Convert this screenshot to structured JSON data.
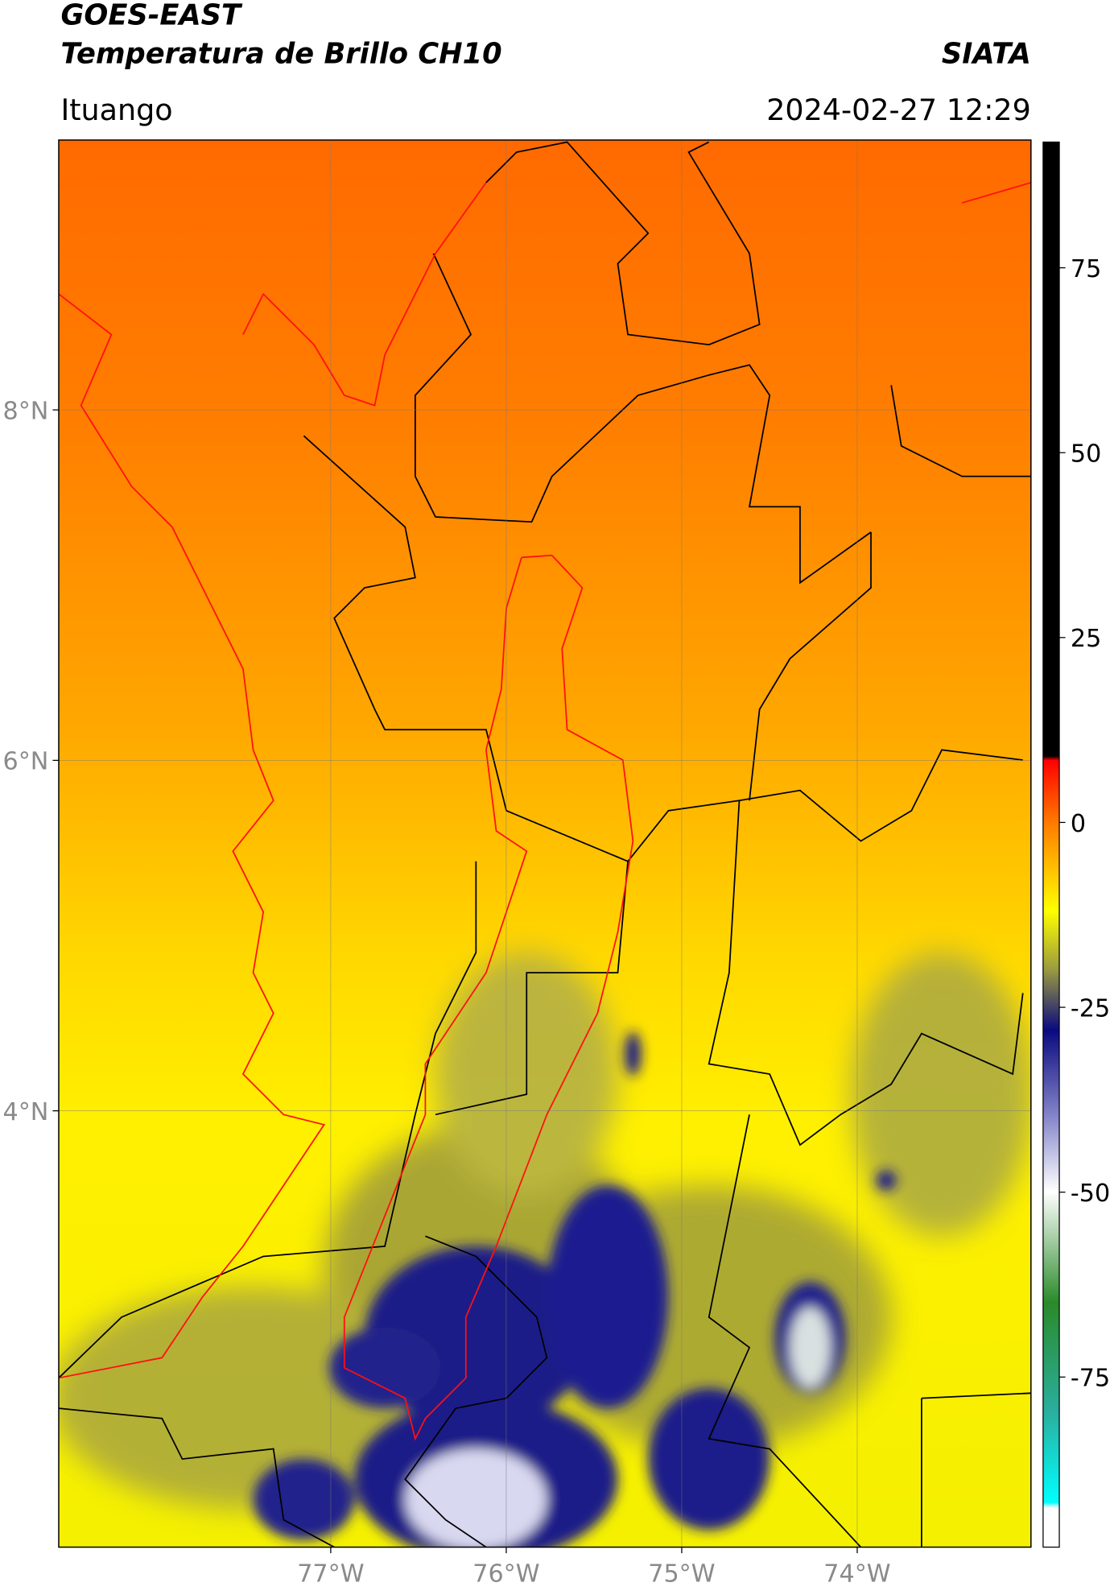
{
  "header": {
    "title": "GOES-EAST",
    "subtitle": "Temperatura de Brillo CH10",
    "source": "SIATA",
    "location": "Ituango",
    "datetime": "2024-02-27 12:29"
  },
  "map": {
    "xlim": [
      -78.55,
      -73.01
    ],
    "ylim": [
      1.51,
      9.54
    ],
    "xticks": [
      {
        "value": -77,
        "label": "77°W"
      },
      {
        "value": -76,
        "label": "76°W"
      },
      {
        "value": -75,
        "label": "75°W"
      },
      {
        "value": -74,
        "label": "74°W"
      }
    ],
    "yticks": [
      {
        "value": 8,
        "label": "8°N"
      },
      {
        "value": 6,
        "label": "6°N"
      },
      {
        "value": 4,
        "label": "4°N"
      }
    ],
    "grid": true
  },
  "colorbar": {
    "lim": [
      -98,
      92
    ],
    "ticks": [
      75,
      50,
      25,
      0,
      -25,
      -50,
      -75
    ]
  }
}
